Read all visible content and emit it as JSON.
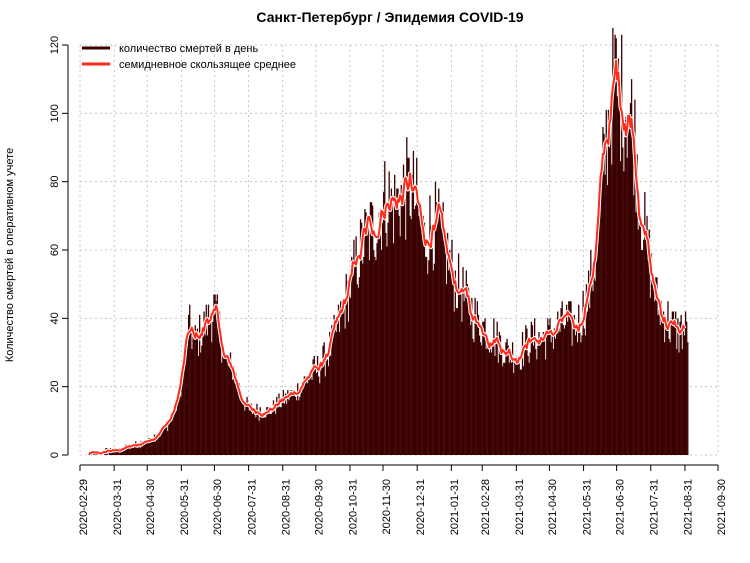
{
  "chart_data": {
    "type": "bar+line",
    "title": "Санкт-Петербург / Эпидемия COVID-19",
    "ylabel": "Количество смертей в оперативном учете",
    "xlabel": "",
    "ylim": [
      0,
      120
    ],
    "yticks": [
      0,
      20,
      40,
      60,
      80,
      100,
      120
    ],
    "x_start": "2020-02-29",
    "x_end": "2021-09-30",
    "xticks": [
      "2020-02-29",
      "2020-03-31",
      "2020-04-30",
      "2020-05-31",
      "2020-06-30",
      "2020-07-31",
      "2020-08-31",
      "2020-09-30",
      "2020-10-31",
      "2020-11-30",
      "2020-12-31",
      "2021-01-31",
      "2021-02-28",
      "2021-03-31",
      "2021-04-30",
      "2021-05-31",
      "2021-06-30",
      "2021-07-31",
      "2021-08-31",
      "2021-09-30"
    ],
    "grid": true,
    "legend_position": "top-left",
    "colors": {
      "bars": "#3a0000",
      "moving_average": "#ff2a1a",
      "bar_gap": "#ffffff",
      "grid": "#bbbbbb"
    },
    "series": [
      {
        "name": "количество смертей в день",
        "kind": "bar",
        "data_start": "2020-03-05",
        "anchors": [
          [
            "2020-03-05",
            0
          ],
          [
            "2020-03-25",
            1
          ],
          [
            "2020-04-10",
            2
          ],
          [
            "2020-04-20",
            3
          ],
          [
            "2020-04-30",
            4
          ],
          [
            "2020-05-10",
            6
          ],
          [
            "2020-05-20",
            10
          ],
          [
            "2020-05-27",
            15
          ],
          [
            "2020-06-02",
            27
          ],
          [
            "2020-06-06",
            37
          ],
          [
            "2020-06-12",
            33
          ],
          [
            "2020-06-18",
            36
          ],
          [
            "2020-06-25",
            40
          ],
          [
            "2020-06-29",
            43
          ],
          [
            "2020-07-05",
            35
          ],
          [
            "2020-07-10",
            27
          ],
          [
            "2020-07-17",
            25
          ],
          [
            "2020-07-24",
            17
          ],
          [
            "2020-07-31",
            13
          ],
          [
            "2020-08-10",
            13
          ],
          [
            "2020-08-20",
            13
          ],
          [
            "2020-08-31",
            16
          ],
          [
            "2020-09-10",
            18
          ],
          [
            "2020-09-20",
            22
          ],
          [
            "2020-09-30",
            25
          ],
          [
            "2020-10-08",
            28
          ],
          [
            "2020-10-15",
            33
          ],
          [
            "2020-10-22",
            40
          ],
          [
            "2020-10-31",
            50
          ],
          [
            "2020-11-07",
            58
          ],
          [
            "2020-11-14",
            64
          ],
          [
            "2020-11-20",
            66
          ],
          [
            "2020-11-27",
            72
          ],
          [
            "2020-12-04",
            75
          ],
          [
            "2020-12-10",
            73
          ],
          [
            "2020-12-18",
            77
          ],
          [
            "2020-12-25",
            78
          ],
          [
            "2020-12-31",
            72
          ],
          [
            "2021-01-06",
            63
          ],
          [
            "2021-01-13",
            68
          ],
          [
            "2021-01-20",
            65
          ],
          [
            "2021-01-27",
            58
          ],
          [
            "2021-02-03",
            51
          ],
          [
            "2021-02-10",
            47
          ],
          [
            "2021-02-17",
            43
          ],
          [
            "2021-02-24",
            39
          ],
          [
            "2021-03-03",
            37
          ],
          [
            "2021-03-10",
            35
          ],
          [
            "2021-03-17",
            32
          ],
          [
            "2021-03-24",
            30
          ],
          [
            "2021-03-31",
            29
          ],
          [
            "2021-04-07",
            32
          ],
          [
            "2021-04-14",
            34
          ],
          [
            "2021-04-21",
            34
          ],
          [
            "2021-04-30",
            35
          ],
          [
            "2021-05-07",
            37
          ],
          [
            "2021-05-14",
            39
          ],
          [
            "2021-05-21",
            37
          ],
          [
            "2021-05-28",
            40
          ],
          [
            "2021-06-04",
            47
          ],
          [
            "2021-06-10",
            58
          ],
          [
            "2021-06-15",
            75
          ],
          [
            "2021-06-20",
            92
          ],
          [
            "2021-06-25",
            104
          ],
          [
            "2021-06-28",
            110
          ],
          [
            "2021-07-01",
            106
          ],
          [
            "2021-07-05",
            104
          ],
          [
            "2021-07-10",
            103
          ],
          [
            "2021-07-15",
            95
          ],
          [
            "2021-07-20",
            78
          ],
          [
            "2021-07-25",
            65
          ],
          [
            "2021-07-30",
            55
          ],
          [
            "2021-08-05",
            45
          ],
          [
            "2021-08-10",
            42
          ],
          [
            "2021-08-17",
            38
          ],
          [
            "2021-08-24",
            36
          ],
          [
            "2021-09-02",
            37
          ]
        ]
      },
      {
        "name": "семидневное скользящее среднее",
        "kind": "line",
        "window_days": 7
      }
    ]
  }
}
